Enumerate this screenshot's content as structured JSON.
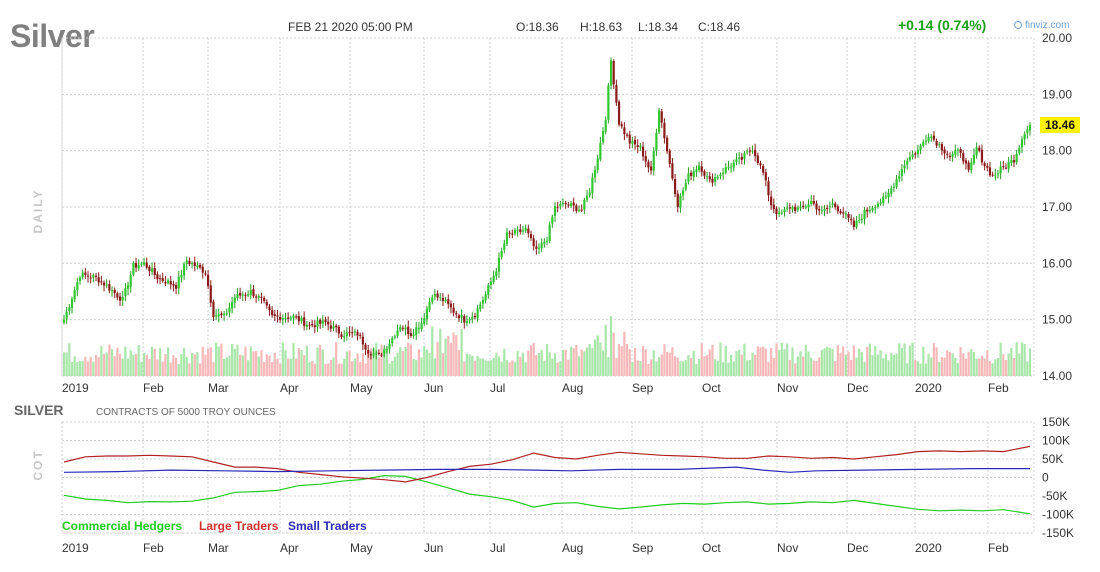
{
  "header": {
    "ticker": "Silver",
    "datetime": "FEB 21 2020 05:00 PM",
    "open": "O:18.36",
    "high": "H:18.63",
    "low": "L:18.34",
    "close": "C:18.46",
    "change": "+0.14 (0.74%)",
    "brand": "finviz.com",
    "timeframe": "DAILY"
  },
  "chart_data": [
    {
      "type": "candlestick",
      "ylim": [
        14.0,
        20.0
      ],
      "yticks": [
        "20.00",
        "19.00",
        "18.00",
        "17.00",
        "16.00",
        "15.00",
        "14.00"
      ],
      "last_price": "18.46",
      "x_ticks": [
        "2019",
        "Feb",
        "Mar",
        "Apr",
        "May",
        "Jun",
        "Jul",
        "Aug",
        "Sep",
        "Oct",
        "Nov",
        "Dec",
        "2020",
        "Feb"
      ],
      "anchors": [
        [
          0,
          15.0
        ],
        [
          3,
          15.4
        ],
        [
          6,
          15.8
        ],
        [
          12,
          15.75
        ],
        [
          16,
          15.6
        ],
        [
          22,
          15.35
        ],
        [
          26,
          15.95
        ],
        [
          30,
          16.0
        ],
        [
          35,
          15.75
        ],
        [
          42,
          15.6
        ],
        [
          46,
          16.05
        ],
        [
          53,
          15.85
        ],
        [
          56,
          15.1
        ],
        [
          60,
          15.05
        ],
        [
          64,
          15.4
        ],
        [
          70,
          15.5
        ],
        [
          74,
          15.35
        ],
        [
          78,
          15.05
        ],
        [
          86,
          15.05
        ],
        [
          92,
          14.9
        ],
        [
          98,
          14.95
        ],
        [
          104,
          14.75
        ],
        [
          110,
          14.75
        ],
        [
          114,
          14.45
        ],
        [
          118,
          14.35
        ],
        [
          122,
          14.6
        ],
        [
          126,
          14.9
        ],
        [
          130,
          14.75
        ],
        [
          134,
          14.95
        ],
        [
          138,
          15.45
        ],
        [
          142,
          15.35
        ],
        [
          146,
          15.15
        ],
        [
          150,
          15.0
        ],
        [
          154,
          15.1
        ],
        [
          158,
          15.45
        ],
        [
          162,
          15.9
        ],
        [
          166,
          16.5
        ],
        [
          170,
          16.55
        ],
        [
          173,
          16.6
        ],
        [
          177,
          16.2
        ],
        [
          181,
          16.45
        ],
        [
          184,
          17.0
        ],
        [
          188,
          17.05
        ],
        [
          194,
          16.95
        ],
        [
          197,
          17.3
        ],
        [
          200,
          17.9
        ],
        [
          203,
          18.6
        ],
        [
          205,
          19.6
        ],
        [
          208,
          18.5
        ],
        [
          212,
          18.15
        ],
        [
          216,
          18.05
        ],
        [
          220,
          17.6
        ],
        [
          223,
          18.75
        ],
        [
          226,
          18.0
        ],
        [
          230,
          17.05
        ],
        [
          234,
          17.55
        ],
        [
          238,
          17.75
        ],
        [
          242,
          17.45
        ],
        [
          246,
          17.6
        ],
        [
          250,
          17.75
        ],
        [
          254,
          17.85
        ],
        [
          258,
          18.05
        ],
        [
          262,
          17.6
        ],
        [
          265,
          17.05
        ],
        [
          268,
          16.85
        ],
        [
          272,
          17.0
        ],
        [
          276,
          16.95
        ],
        [
          280,
          17.1
        ],
        [
          284,
          16.9
        ],
        [
          288,
          17.05
        ],
        [
          292,
          16.9
        ],
        [
          296,
          16.65
        ],
        [
          300,
          16.9
        ],
        [
          304,
          17.05
        ],
        [
          308,
          17.15
        ],
        [
          312,
          17.5
        ],
        [
          316,
          17.85
        ],
        [
          320,
          18.0
        ],
        [
          324,
          18.3
        ],
        [
          328,
          18.1
        ],
        [
          332,
          17.9
        ],
        [
          336,
          18.0
        ],
        [
          339,
          17.6
        ],
        [
          342,
          18.05
        ],
        [
          345,
          17.75
        ],
        [
          348,
          17.55
        ],
        [
          352,
          17.7
        ],
        [
          356,
          17.85
        ],
        [
          360,
          18.35
        ],
        [
          362,
          18.46
        ]
      ],
      "note_bars_pct_of_volume_max": [
        0.5,
        0.45,
        0.55,
        0.5,
        0.6,
        0.4,
        0.5,
        0.45,
        0.55,
        0.65,
        0.5,
        0.45,
        0.6,
        0.7,
        0.55,
        0.5
      ]
    },
    {
      "type": "line",
      "title": "SILVER",
      "subtitle": "CONTRACTS OF 5000 TROY OUNCES",
      "side_label": "COT",
      "ylim": [
        -150000,
        150000
      ],
      "yticks": [
        "150K",
        "100K",
        "50K",
        "0",
        "-50K",
        "-100K",
        "-150K"
      ],
      "x_ticks": [
        "2019",
        "Feb",
        "Mar",
        "Apr",
        "May",
        "Jun",
        "Jul",
        "Aug",
        "Sep",
        "Oct",
        "Nov",
        "Dec",
        "2020",
        "Feb"
      ],
      "series": [
        {
          "name": "Commercial Hedgers",
          "color": "#22cc22",
          "points": [
            [
              0,
              -48000
            ],
            [
              8,
              -58000
            ],
            [
              16,
              -62000
            ],
            [
              24,
              -68000
            ],
            [
              32,
              -65000
            ],
            [
              40,
              -66000
            ],
            [
              48,
              -64000
            ],
            [
              56,
              -55000
            ],
            [
              64,
              -40000
            ],
            [
              72,
              -38000
            ],
            [
              80,
              -35000
            ],
            [
              88,
              -22000
            ],
            [
              96,
              -18000
            ],
            [
              104,
              -10000
            ],
            [
              112,
              -5000
            ],
            [
              120,
              5000
            ],
            [
              128,
              3000
            ],
            [
              136,
              -12000
            ],
            [
              144,
              -28000
            ],
            [
              152,
              -45000
            ],
            [
              160,
              -52000
            ],
            [
              168,
              -62000
            ],
            [
              176,
              -80000
            ],
            [
              184,
              -70000
            ],
            [
              192,
              -68000
            ],
            [
              200,
              -78000
            ],
            [
              208,
              -85000
            ],
            [
              216,
              -80000
            ],
            [
              224,
              -74000
            ],
            [
              232,
              -70000
            ],
            [
              240,
              -72000
            ],
            [
              248,
              -68000
            ],
            [
              256,
              -66000
            ],
            [
              264,
              -72000
            ],
            [
              272,
              -70000
            ],
            [
              280,
              -66000
            ],
            [
              288,
              -68000
            ],
            [
              296,
              -62000
            ],
            [
              304,
              -70000
            ],
            [
              312,
              -78000
            ],
            [
              320,
              -86000
            ],
            [
              328,
              -90000
            ],
            [
              336,
              -88000
            ],
            [
              344,
              -90000
            ],
            [
              352,
              -87000
            ],
            [
              362,
              -98000
            ]
          ]
        },
        {
          "name": "Large Traders",
          "color": "#b22222",
          "points": [
            [
              0,
              42000
            ],
            [
              8,
              56000
            ],
            [
              16,
              58000
            ],
            [
              24,
              58000
            ],
            [
              32,
              60000
            ],
            [
              40,
              58000
            ],
            [
              48,
              56000
            ],
            [
              56,
              42000
            ],
            [
              64,
              28000
            ],
            [
              72,
              28000
            ],
            [
              80,
              24000
            ],
            [
              88,
              14000
            ],
            [
              96,
              8000
            ],
            [
              104,
              2000
            ],
            [
              112,
              -2000
            ],
            [
              120,
              -6000
            ],
            [
              128,
              -12000
            ],
            [
              136,
              0
            ],
            [
              144,
              16000
            ],
            [
              152,
              30000
            ],
            [
              160,
              36000
            ],
            [
              168,
              48000
            ],
            [
              176,
              66000
            ],
            [
              184,
              54000
            ],
            [
              192,
              50000
            ],
            [
              200,
              60000
            ],
            [
              208,
              68000
            ],
            [
              216,
              64000
            ],
            [
              224,
              60000
            ],
            [
              232,
              58000
            ],
            [
              240,
              56000
            ],
            [
              248,
              52000
            ],
            [
              256,
              52000
            ],
            [
              264,
              58000
            ],
            [
              272,
              56000
            ],
            [
              280,
              52000
            ],
            [
              288,
              54000
            ],
            [
              296,
              50000
            ],
            [
              304,
              56000
            ],
            [
              312,
              62000
            ],
            [
              320,
              70000
            ],
            [
              328,
              72000
            ],
            [
              336,
              70000
            ],
            [
              344,
              72000
            ],
            [
              352,
              70000
            ],
            [
              362,
              84000
            ]
          ]
        },
        {
          "name": "Small Traders",
          "color": "#2a2ab8",
          "points": [
            [
              0,
              14000
            ],
            [
              20,
              16000
            ],
            [
              40,
              20000
            ],
            [
              60,
              18000
            ],
            [
              80,
              16000
            ],
            [
              100,
              18000
            ],
            [
              120,
              20000
            ],
            [
              140,
              22000
            ],
            [
              160,
              22000
            ],
            [
              176,
              20000
            ],
            [
              190,
              18000
            ],
            [
              208,
              22000
            ],
            [
              230,
              22000
            ],
            [
              252,
              28000
            ],
            [
              262,
              20000
            ],
            [
              272,
              14000
            ],
            [
              282,
              18000
            ],
            [
              300,
              20000
            ],
            [
              320,
              22000
            ],
            [
              340,
              24000
            ],
            [
              362,
              24000
            ]
          ]
        }
      ]
    }
  ]
}
